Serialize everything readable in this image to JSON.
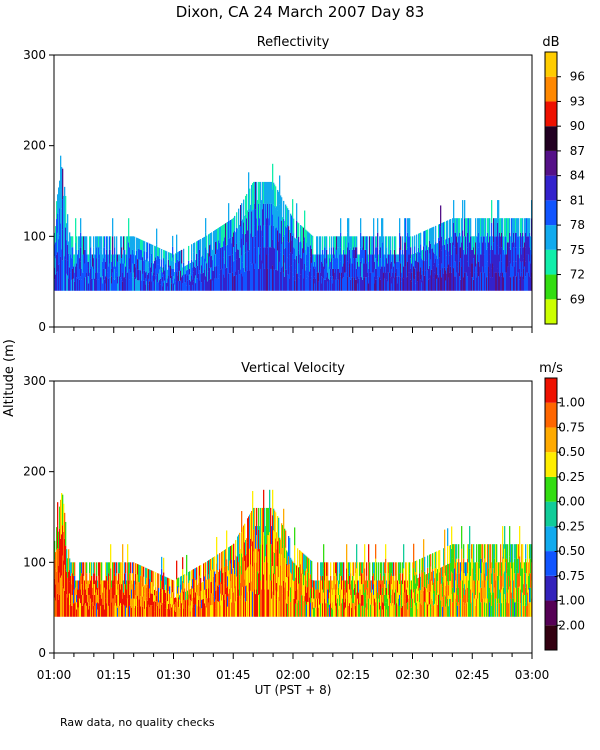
{
  "title": "Dixon, CA 24 March 2007  Day  83",
  "ylabel": "Altitude (m)",
  "xlabel": "UT  (PST + 8)",
  "footnote": "Raw data, no quality checks",
  "x_ticks": [
    "01:00",
    "01:15",
    "01:30",
    "01:45",
    "02:00",
    "02:15",
    "02:30",
    "02:45",
    "03:00"
  ],
  "x_range_minutes": [
    0,
    120
  ],
  "chart_data": [
    {
      "type": "heatmap",
      "title": "Reflectivity",
      "ylim": [
        0,
        300
      ],
      "y_ticks": [
        0,
        100,
        200,
        300
      ],
      "colorbar_unit": "dB",
      "colorbar_labels": [
        "69",
        "72",
        "75",
        "78",
        "81",
        "84",
        "87",
        "90",
        "93",
        "96"
      ],
      "colorbar_colors": [
        "#ccff00",
        "#33dd11",
        "#11eeaa",
        "#11aaee",
        "#1155ff",
        "#3322cc",
        "#551188",
        "#220022",
        "#ee1100",
        "#ff8800",
        "#ffcc00"
      ],
      "data_altitude_min": 40,
      "profile": {
        "time_min": [
          0,
          2,
          4,
          10,
          20,
          30,
          38,
          45,
          50,
          55,
          60,
          65,
          70,
          75,
          80,
          90,
          100,
          110,
          120
        ],
        "top_m": [
          120,
          180,
          100,
          100,
          100,
          80,
          100,
          120,
          160,
          160,
          120,
          100,
          100,
          100,
          100,
          100,
          120,
          120,
          120
        ]
      }
    },
    {
      "type": "heatmap",
      "title": "Vertical Velocity",
      "ylim": [
        0,
        300
      ],
      "y_ticks": [
        0,
        100,
        200,
        300
      ],
      "colorbar_unit": "m/s",
      "colorbar_labels": [
        "-2.00",
        "-1.00",
        "-0.75",
        "-0.50",
        "-0.25",
        "0.00",
        "0.25",
        "0.50",
        "0.75",
        "1.00"
      ],
      "colorbar_colors": [
        "#330011",
        "#550055",
        "#3322bb",
        "#1155ff",
        "#11aaee",
        "#11cc99",
        "#33dd11",
        "#ffee00",
        "#ffaa00",
        "#ff6600",
        "#ee1100"
      ],
      "data_altitude_min": 40,
      "profile": {
        "time_min": [
          0,
          2,
          4,
          10,
          20,
          30,
          38,
          45,
          50,
          55,
          60,
          65,
          70,
          75,
          80,
          90,
          100,
          110,
          120
        ],
        "top_m": [
          120,
          180,
          100,
          100,
          100,
          80,
          100,
          120,
          160,
          160,
          120,
          100,
          100,
          100,
          100,
          100,
          120,
          120,
          120
        ]
      }
    }
  ]
}
